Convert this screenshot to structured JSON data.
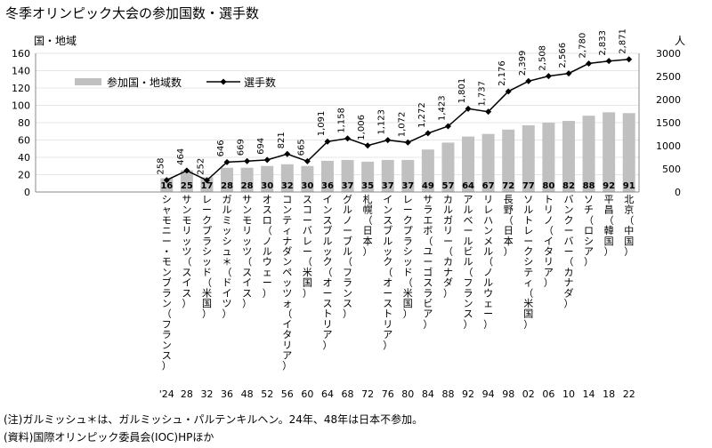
{
  "title": "冬季オリンピック大会の参加国数・選手数",
  "notes": [
    "(注)ガルミッシュ＊は、ガルミッシュ・パルテンキルヘン。24年、48年は日本不参加。",
    "(資料)国際オリンピック委員会(IOC)HPほか"
  ],
  "chart_data": {
    "type": "bar",
    "title": "冬季オリンピック大会の参加国数・選手数",
    "left_axis_label": "国・地域",
    "right_axis_label": "人",
    "left_ylim": [
      0,
      160
    ],
    "left_ticks": [
      "0",
      "20",
      "40",
      "60",
      "80",
      "100",
      "120",
      "140",
      "160"
    ],
    "right_ylim": [
      0,
      3000
    ],
    "right_ticks": [
      "0",
      "500",
      "1000",
      "1500",
      "2000",
      "2500",
      "3000"
    ],
    "legend": {
      "bars": "参加国・地域数",
      "line": "選手数"
    },
    "categories": [
      "シャモニー・モンブラン（フランス）",
      "サンモリッツ（スイス）",
      "レークプラシッド（米国）",
      "ガルミッシュ＊（ドイツ）",
      "サンモリッツ（スイス）",
      "オスロ（ノルウェー）",
      "コンティナダンペッツォ（イタリア）",
      "スコーバレー（米国）",
      "インスブルック（オーストリア）",
      "グルノーブル（フランス）",
      "札幌（日本）",
      "インスブルック（オーストリア）",
      "レークプラシッド（米国）",
      "サラエボ（ユーゴスラビア）",
      "カルガリー（カナダ）",
      "アルベールビル（フランス）",
      "リレハンメル（ノルウェー）",
      "長野（日本）",
      "ソルトレークシティ（米国）",
      "トリノ（イタリア）",
      "バンクーバー（カナダ）",
      "ソチ（ロシア）",
      "平昌（韓国）",
      "北京（中国）"
    ],
    "years": [
      "'24",
      "28",
      "32",
      "36",
      "48",
      "52",
      "56",
      "60",
      "64",
      "68",
      "72",
      "76",
      "80",
      "84",
      "88",
      "92",
      "94",
      "98",
      "02",
      "06",
      "10",
      "14",
      "18",
      "22"
    ],
    "series": [
      {
        "name": "参加国・地域数",
        "type": "bar",
        "values": [
          16,
          25,
          17,
          28,
          28,
          30,
          32,
          30,
          36,
          37,
          35,
          37,
          37,
          49,
          57,
          64,
          67,
          72,
          77,
          80,
          82,
          88,
          92,
          91
        ]
      },
      {
        "name": "選手数",
        "type": "line",
        "values": [
          258,
          464,
          252,
          646,
          669,
          694,
          821,
          665,
          1091,
          1158,
          1006,
          1123,
          1072,
          1272,
          1423,
          1801,
          1737,
          2176,
          2399,
          2508,
          2566,
          2780,
          2833,
          2871
        ]
      }
    ],
    "colors": {
      "bar": "#c0c0c0",
      "line": "#000000",
      "grid": "#e6e6e6",
      "axis": "#888888"
    }
  }
}
